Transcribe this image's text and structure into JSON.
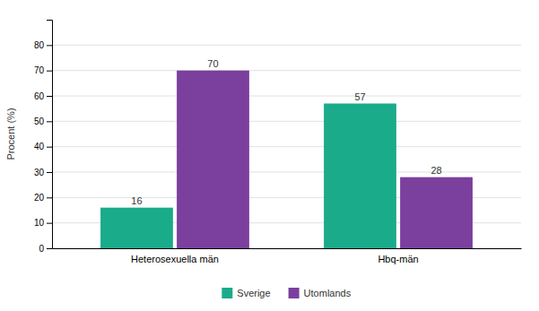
{
  "chart_data": {
    "type": "bar",
    "categories": [
      "Heterosexuella män",
      "Hbq-män"
    ],
    "series": [
      {
        "name": "Sverige",
        "color": "#1aab8a",
        "values": [
          16,
          57
        ]
      },
      {
        "name": "Utomlands",
        "color": "#7b3f9e",
        "values": [
          70,
          28
        ]
      }
    ],
    "ylabel": "Procent (%)",
    "ylim": [
      0,
      90
    ],
    "yticks": [
      0,
      10,
      20,
      30,
      40,
      50,
      60,
      70,
      80
    ],
    "grid": true,
    "data_labels": true,
    "legend": "bottom"
  }
}
